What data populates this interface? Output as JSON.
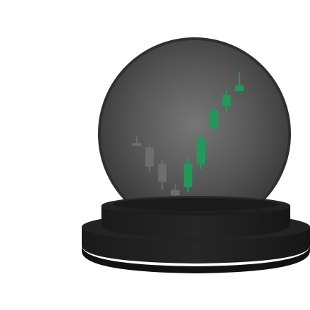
{
  "illustration": {
    "subject": "crystal-ball-with-candlestick-chart",
    "colors": {
      "background": "#ffffff",
      "glass_dark": "#3a3a3a",
      "glass_light": "#6e6e6e",
      "glass_rim": "#2a2a2a",
      "base_top": "#262626",
      "base_side": "#1b1b1b",
      "base_shadow": "#111111",
      "bearish_candle": "#6d6d6d",
      "bearish_candle_edge": "#5a5a5a",
      "bullish_candle": "#1f9a5a",
      "bullish_candle_light": "#26b36a"
    }
  },
  "chart_data": {
    "type": "candlestick",
    "candles": [
      {
        "trend": "down",
        "open": 6.4,
        "close": 6.2,
        "high": 6.9,
        "low": 6.2
      },
      {
        "trend": "down",
        "open": 6.1,
        "close": 4.7,
        "high": 6.3,
        "low": 4.3
      },
      {
        "trend": "down",
        "open": 4.9,
        "close": 3.6,
        "high": 5.2,
        "low": 3.0
      },
      {
        "trend": "down",
        "open": 3.0,
        "close": 2.6,
        "high": 3.4,
        "low": 2.5
      },
      {
        "trend": "up",
        "open": 3.2,
        "close": 4.9,
        "high": 5.4,
        "low": 2.8
      },
      {
        "trend": "up",
        "open": 4.9,
        "close": 6.7,
        "high": 7.1,
        "low": 4.5
      },
      {
        "trend": "up",
        "open": 7.5,
        "close": 8.8,
        "high": 9.1,
        "low": 7.2
      },
      {
        "trend": "up",
        "open": 9.1,
        "close": 9.9,
        "high": 10.3,
        "low": 8.7
      },
      {
        "trend": "up",
        "open": 10.2,
        "close": 10.6,
        "high": 11.6,
        "low": 10.2
      }
    ],
    "ylim": [
      2,
      12
    ],
    "grid": false
  }
}
